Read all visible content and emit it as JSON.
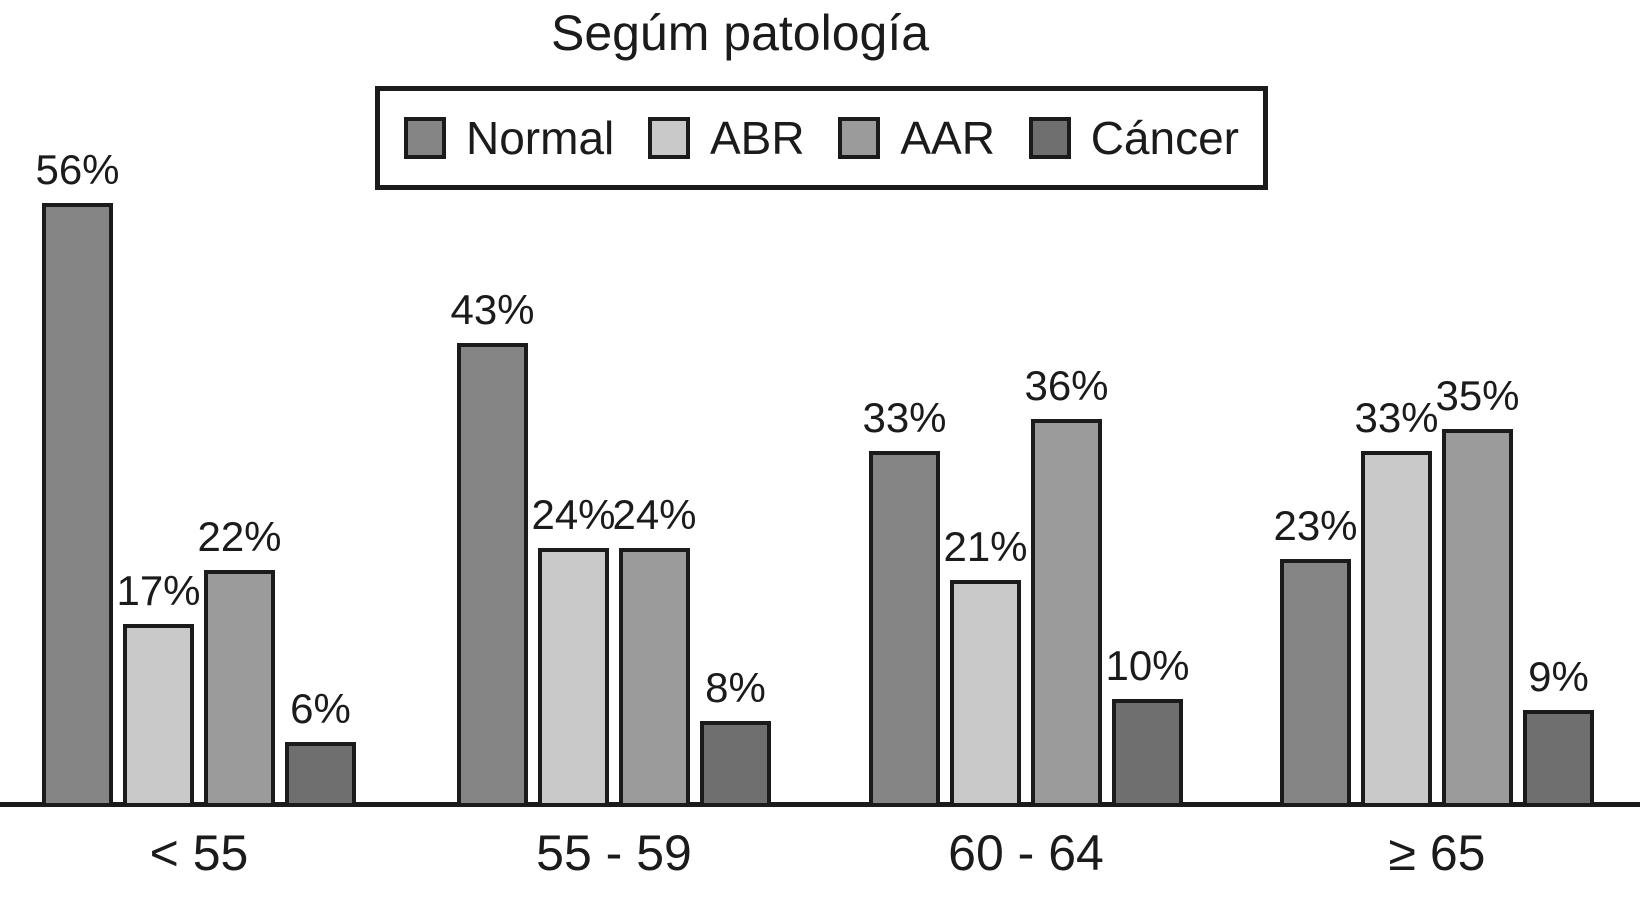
{
  "title": "Segúm patología",
  "chart_data": {
    "type": "bar",
    "title": "Segúm patología",
    "categories": [
      "< 55",
      "55 - 59",
      "60 - 64",
      "≥ 65"
    ],
    "series": [
      {
        "name": "Normal",
        "color": "#858585",
        "values": [
          56,
          43,
          33,
          23
        ]
      },
      {
        "name": "ABR",
        "color": "#c9c9c9",
        "values": [
          17,
          24,
          21,
          33
        ]
      },
      {
        "name": "AAR",
        "color": "#9b9b9b",
        "values": [
          22,
          24,
          36,
          35
        ]
      },
      {
        "name": "Cáncer",
        "color": "#6f6f6f",
        "values": [
          6,
          8,
          10,
          9
        ]
      }
    ],
    "data_labels": true,
    "data_label_suffix": "%",
    "ylim": [
      0,
      60
    ],
    "grid": false,
    "legend_position": "top-center",
    "axis_color": "#1b1b1b",
    "background_color": "#ffffff"
  }
}
